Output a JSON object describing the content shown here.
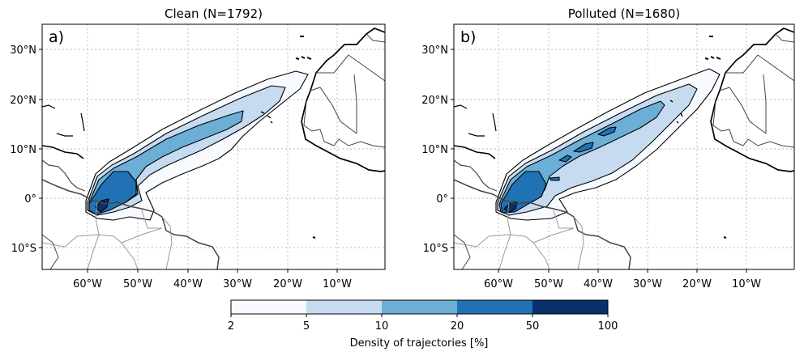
{
  "panels": [
    {
      "label": "a)",
      "title": "Clean (N=1792)",
      "lon_ticks": [
        "60°W",
        "50°W",
        "40°W",
        "30°W",
        "20°W",
        "10°W"
      ],
      "lat_ticks": [
        "30°N",
        "20°N",
        "10°N",
        "0°",
        "10°S"
      ]
    },
    {
      "label": "b)",
      "title": "Polluted (N=1680)",
      "lon_ticks": [
        "60°W",
        "50°W",
        "40°W",
        "30°W",
        "20°W",
        "10°W"
      ],
      "lat_ticks": [
        "30°N",
        "20°N",
        "10°N",
        "0°",
        "10°S"
      ]
    }
  ],
  "map_extent": {
    "lon_min": -69,
    "lon_max": 0,
    "lat_min": -14,
    "lat_max": 35
  },
  "colorbar": {
    "label": "Density of trajectories [%]",
    "levels": [
      "2",
      "5",
      "10",
      "20",
      "50",
      "100"
    ],
    "colors": [
      "#f7fbff",
      "#c6dbef",
      "#6baed6",
      "#2171b5",
      "#08306b"
    ]
  }
}
